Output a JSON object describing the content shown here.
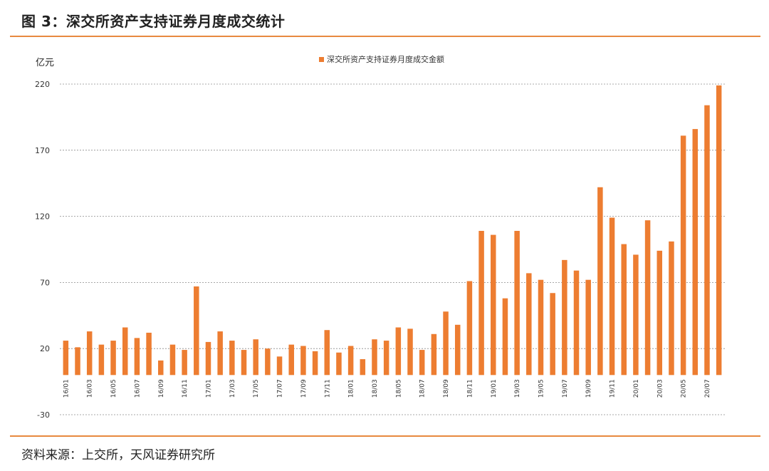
{
  "page": {
    "title": "图 3：深交所资产支持证券月度成交统计",
    "source": "资料来源：上交所，天风证券研究所"
  },
  "chart_data": {
    "type": "bar",
    "unit_label": "亿元",
    "series": [
      {
        "name": "深交所资产支持证券月度成交金额",
        "color": "#ed7d31",
        "values": [
          26,
          21,
          33,
          23,
          26,
          36,
          28,
          32,
          11,
          23,
          19,
          67,
          25,
          33,
          26,
          19,
          27,
          20,
          14,
          23,
          22,
          18,
          34,
          17,
          22,
          12,
          27,
          26,
          36,
          35,
          19,
          31,
          48,
          38,
          71,
          109,
          106,
          58,
          109,
          77,
          72,
          62,
          87,
          79,
          72,
          142,
          119,
          99,
          91,
          117,
          94,
          101,
          181,
          186,
          204,
          219
        ]
      }
    ],
    "x_tick_labels": [
      "16/01",
      "16/03",
      "16/05",
      "16/07",
      "16/09",
      "16/11",
      "17/01",
      "17/03",
      "17/05",
      "17/07",
      "17/09",
      "17/11",
      "18/01",
      "18/03",
      "18/05",
      "18/07",
      "18/09",
      "18/11",
      "19/01",
      "19/03",
      "19/05",
      "19/07",
      "19/09",
      "19/11",
      "20/01",
      "20/03",
      "20/05",
      "20/07"
    ],
    "y_ticks": [
      "220",
      "170",
      "120",
      "70",
      "20",
      "-30"
    ],
    "ylim": [
      -30,
      220
    ],
    "grid": true,
    "legend_position": "top-center"
  }
}
